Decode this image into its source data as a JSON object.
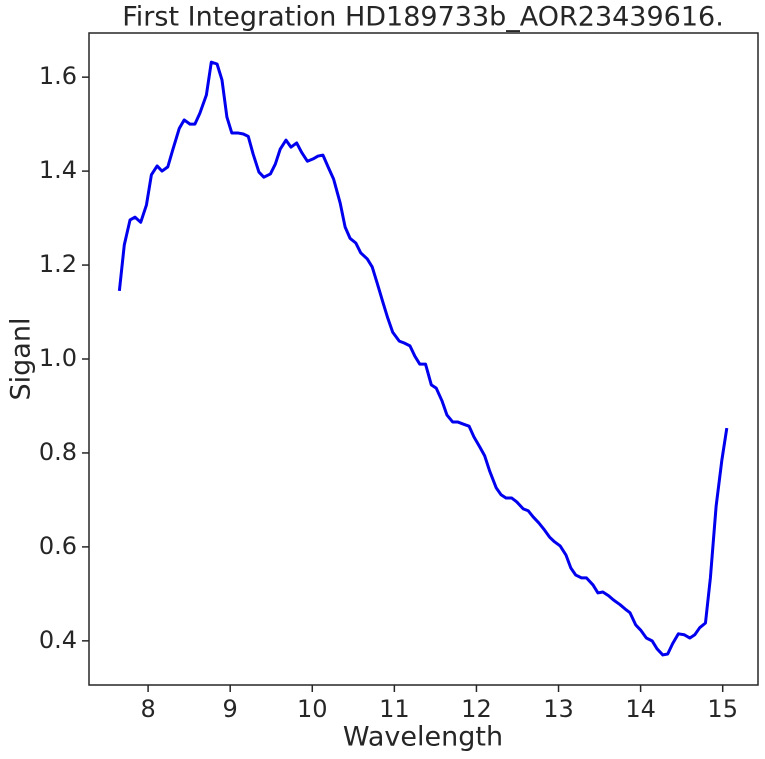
{
  "chart_data": {
    "type": "line",
    "title": "First Integration HD189733b_AOR23439616.",
    "x_label": "Wavelength",
    "y_label": "Siganl",
    "xlim": [
      7.28,
      15.43
    ],
    "ylim": [
      0.306,
      1.694
    ],
    "xticks": [
      8,
      9,
      10,
      11,
      12,
      13,
      14,
      15
    ],
    "yticks": [
      0.4,
      0.6,
      0.8,
      {
        "value": 1,
        "label": "1.0"
      },
      1.2,
      1.4,
      1.6
    ],
    "series": [
      {
        "color": "#0000ee",
        "x": [
          7.65,
          7.71,
          7.78,
          7.84,
          7.91,
          7.98,
          8.04,
          8.11,
          8.17,
          8.24,
          8.3,
          8.38,
          8.44,
          8.51,
          8.57,
          8.63,
          8.71,
          8.77,
          8.84,
          8.9,
          8.96,
          9.02,
          9.1,
          9.16,
          9.22,
          9.28,
          9.35,
          9.41,
          9.49,
          9.55,
          9.61,
          9.68,
          9.74,
          9.81,
          9.87,
          9.94,
          10.01,
          10.07,
          10.13,
          10.2,
          10.26,
          10.34,
          10.4,
          10.46,
          10.53,
          10.59,
          10.67,
          10.73,
          10.79,
          10.86,
          10.92,
          10.98,
          11.06,
          11.12,
          11.19,
          11.25,
          11.31,
          11.38,
          11.45,
          11.51,
          11.58,
          11.64,
          11.71,
          11.77,
          11.83,
          11.91,
          11.97,
          12.04,
          12.1,
          12.16,
          12.24,
          12.3,
          12.36,
          12.43,
          12.49,
          12.57,
          12.63,
          12.69,
          12.76,
          12.82,
          12.89,
          12.95,
          13.02,
          13.09,
          13.15,
          13.21,
          13.28,
          13.34,
          13.42,
          13.48,
          13.54,
          13.61,
          13.67,
          13.75,
          13.81,
          13.87,
          13.94,
          14.0,
          14.07,
          14.14,
          14.2,
          14.27,
          14.33,
          14.39,
          14.46,
          14.53,
          14.6,
          14.66,
          14.72,
          14.79,
          14.85,
          14.92,
          14.99,
          15.05
        ],
        "values": [
          1.145,
          1.243,
          1.296,
          1.302,
          1.291,
          1.328,
          1.392,
          1.411,
          1.4,
          1.409,
          1.445,
          1.491,
          1.509,
          1.5,
          1.5,
          1.523,
          1.562,
          1.632,
          1.628,
          1.594,
          1.515,
          1.481,
          1.481,
          1.479,
          1.474,
          1.436,
          1.398,
          1.387,
          1.394,
          1.415,
          1.447,
          1.466,
          1.451,
          1.46,
          1.44,
          1.421,
          1.426,
          1.432,
          1.434,
          1.406,
          1.383,
          1.332,
          1.281,
          1.257,
          1.247,
          1.226,
          1.213,
          1.196,
          1.162,
          1.121,
          1.087,
          1.057,
          1.038,
          1.034,
          1.028,
          1.006,
          0.989,
          0.989,
          0.945,
          0.938,
          0.911,
          0.881,
          0.866,
          0.866,
          0.862,
          0.857,
          0.834,
          0.813,
          0.794,
          0.762,
          0.726,
          0.711,
          0.704,
          0.704,
          0.696,
          0.681,
          0.677,
          0.664,
          0.651,
          0.638,
          0.621,
          0.611,
          0.602,
          0.583,
          0.555,
          0.54,
          0.534,
          0.534,
          0.519,
          0.502,
          0.504,
          0.496,
          0.487,
          0.477,
          0.468,
          0.46,
          0.434,
          0.423,
          0.406,
          0.4,
          0.383,
          0.37,
          0.372,
          0.394,
          0.415,
          0.413,
          0.406,
          0.413,
          0.428,
          0.438,
          0.534,
          0.687,
          0.785,
          0.853
        ]
      }
    ]
  }
}
